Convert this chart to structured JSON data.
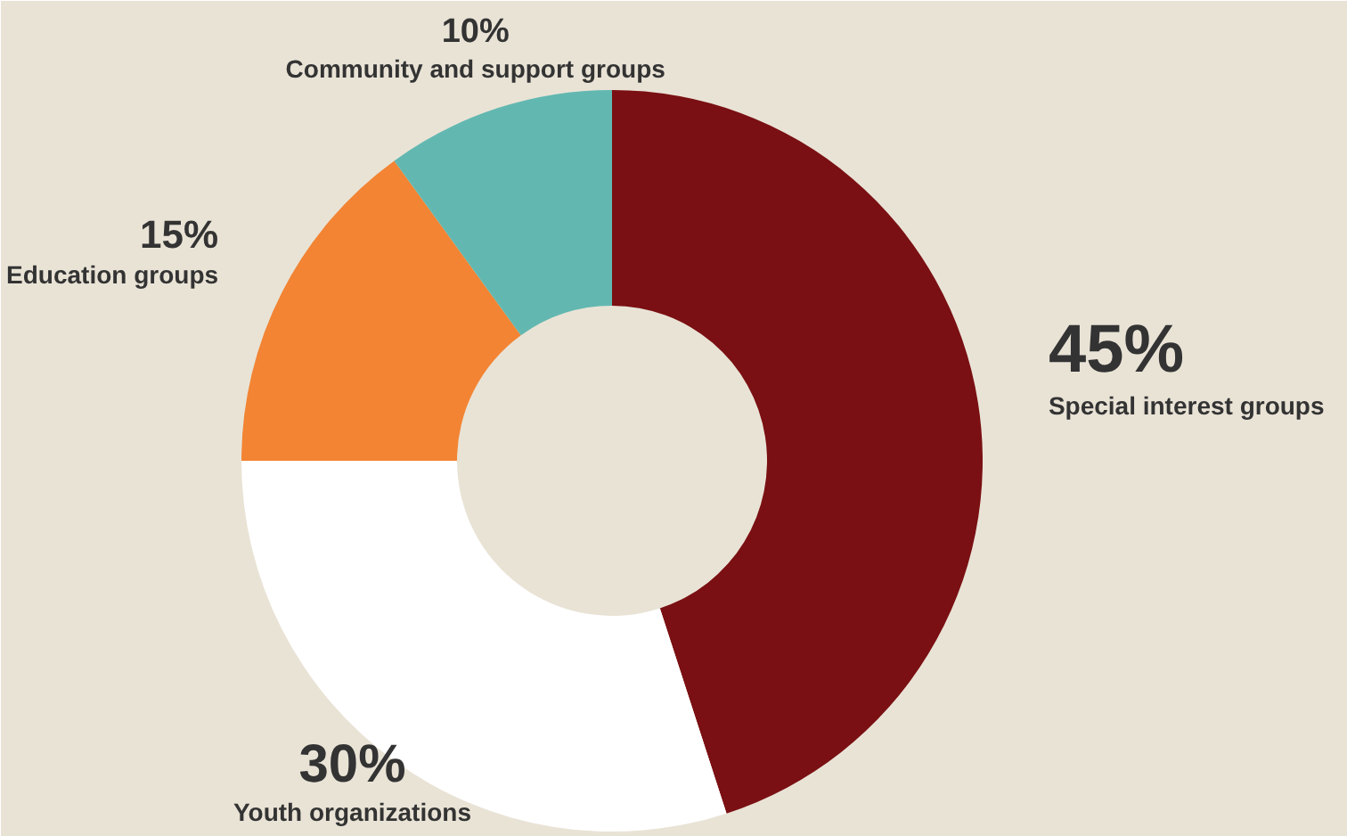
{
  "chart_data": {
    "type": "donut",
    "categories": [
      "Special interest groups",
      "Youth organizations",
      "Education groups",
      "Community and support groups"
    ],
    "values": [
      45,
      30,
      15,
      10
    ],
    "colors": [
      "#7a1013",
      "#ffffff",
      "#f28433",
      "#62b8b1"
    ],
    "value_labels": [
      "45%",
      "30%",
      "15%",
      "10%"
    ]
  }
}
